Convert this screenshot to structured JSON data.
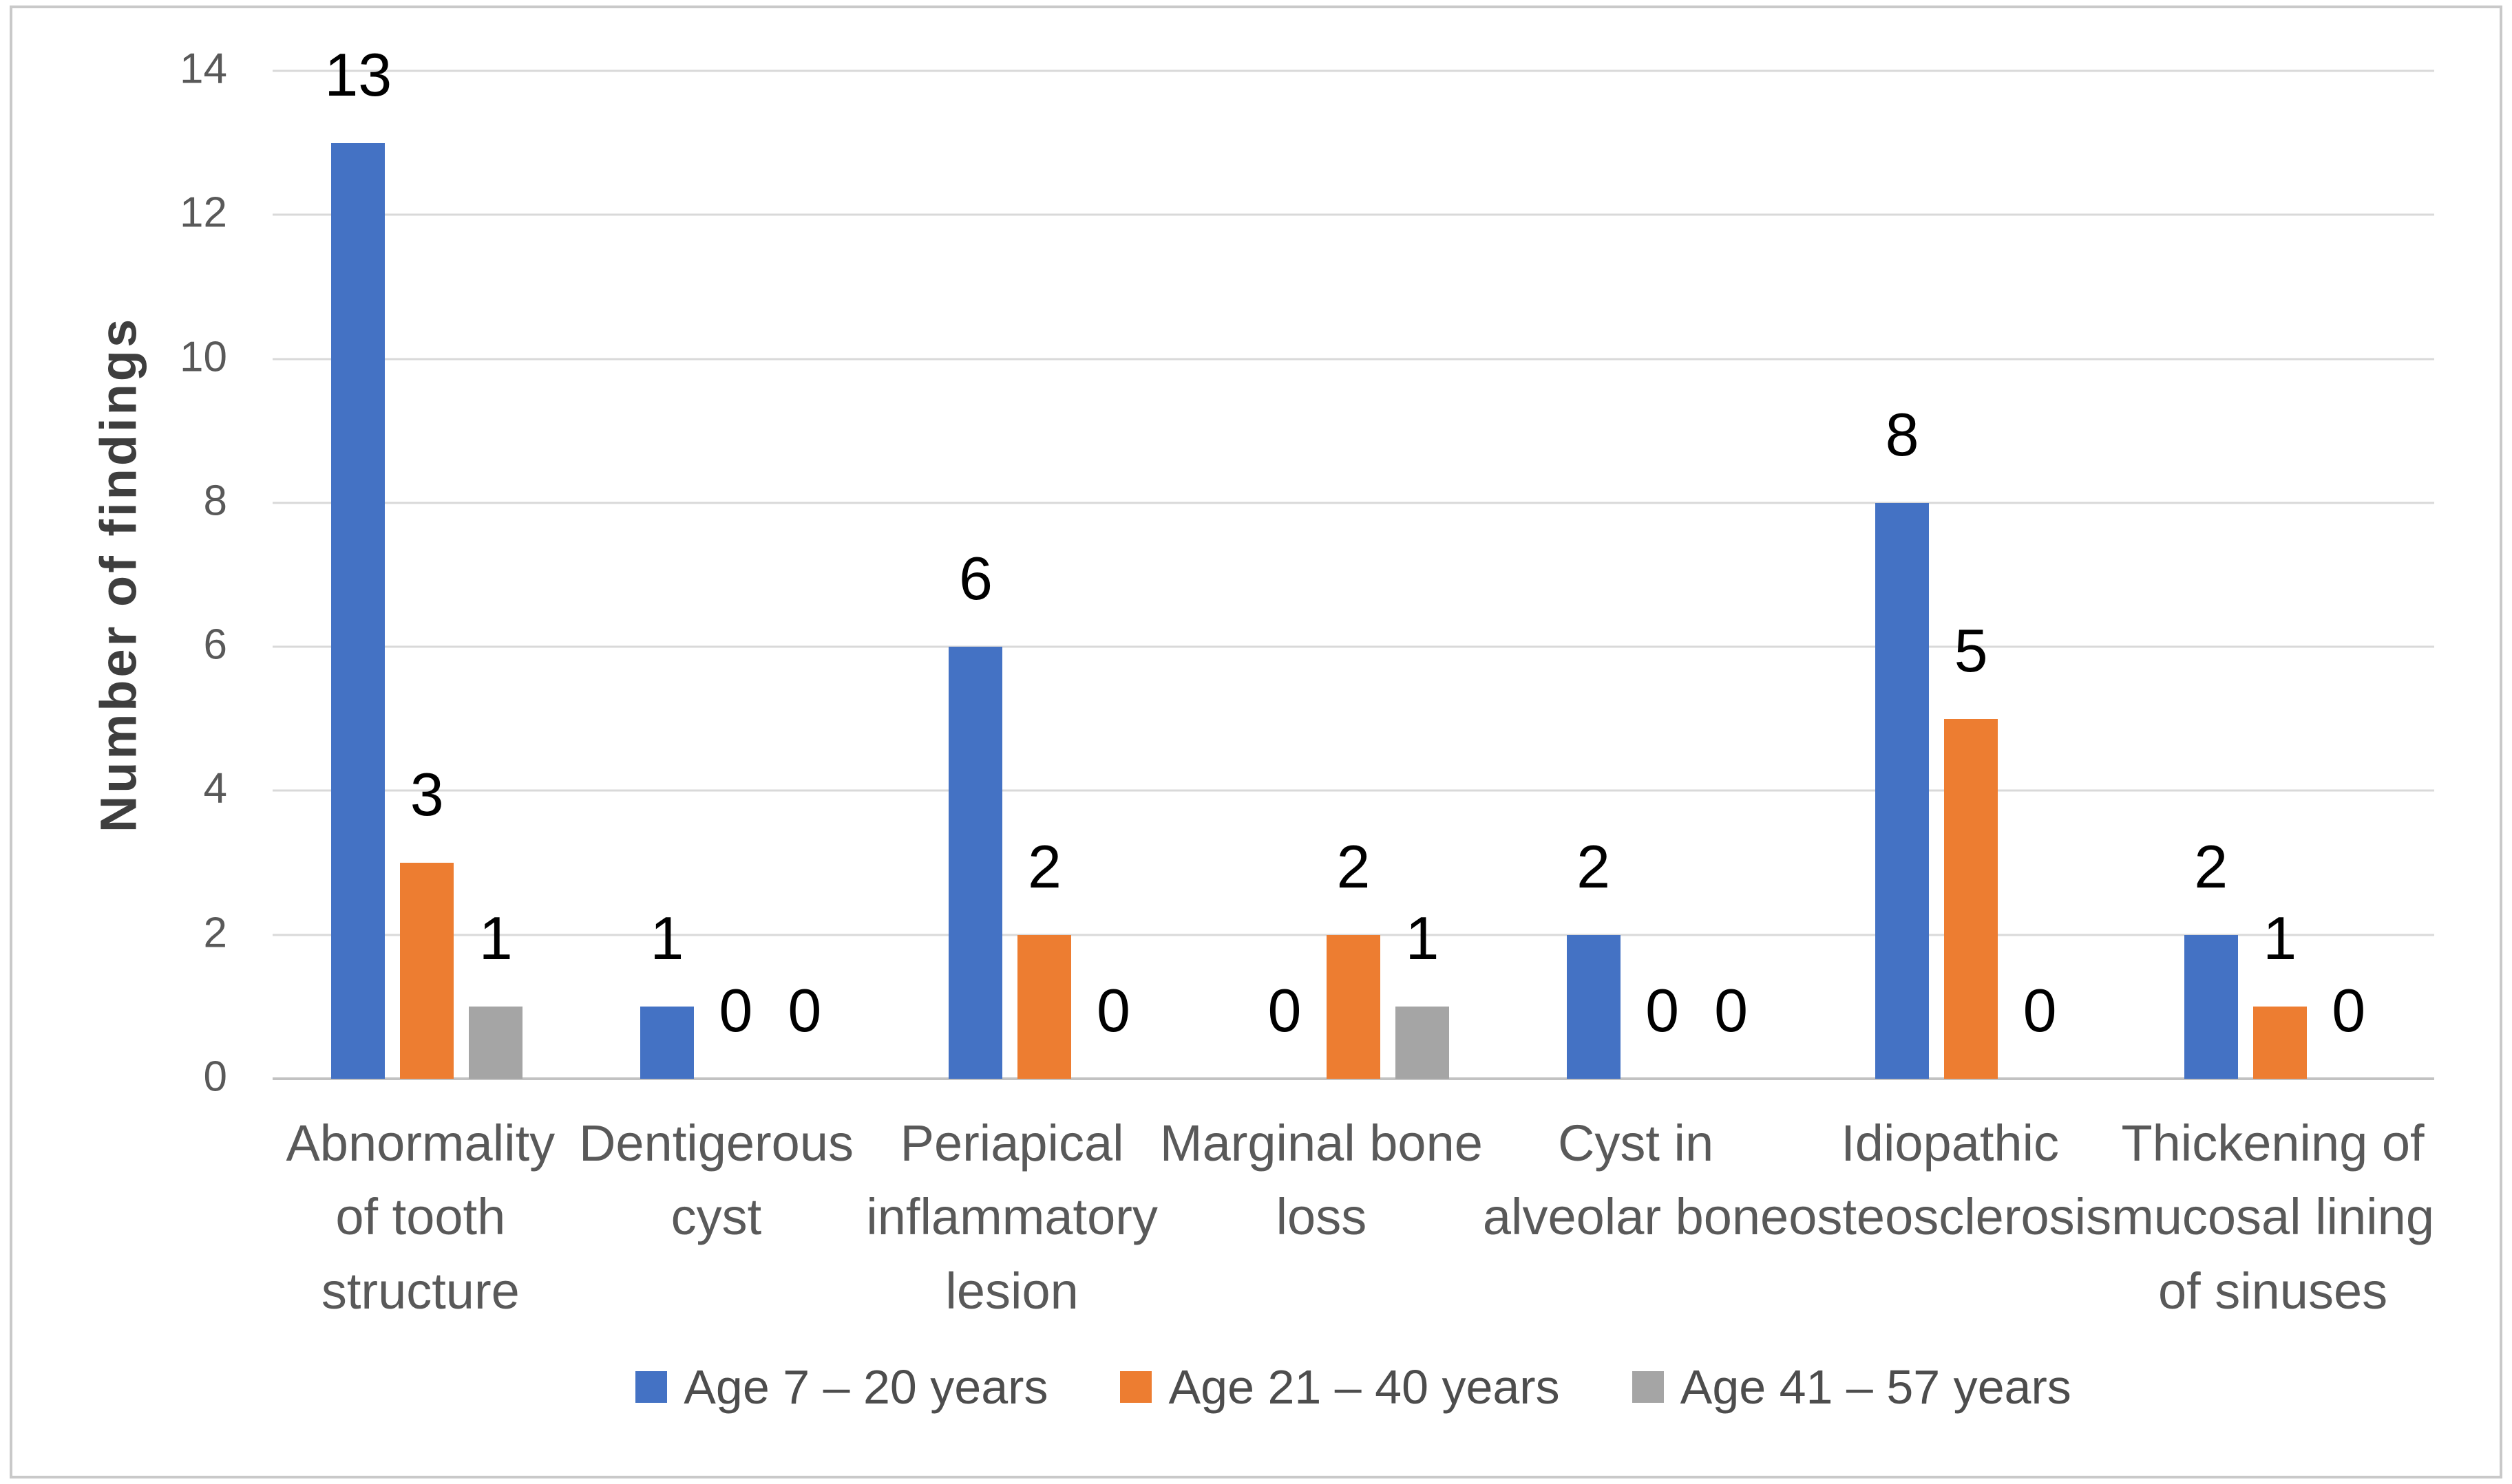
{
  "chart_data": {
    "type": "bar",
    "title": "",
    "xlabel": "",
    "ylabel": "Number of findings",
    "ylim": [
      0,
      14
    ],
    "yticks": [
      0,
      2,
      4,
      6,
      8,
      10,
      12,
      14
    ],
    "grid": true,
    "data_labels": true,
    "legend_position": "bottom",
    "categories": [
      "Abnormality of tooth structure",
      "Dentigerous cyst",
      "Periapical inflammatory lesion",
      "Marginal bone loss",
      "Cyst in alveolar bone",
      "Idiopathic osteosclerosis",
      "Thickening of mucosal lining of sinuses"
    ],
    "category_lines": [
      [
        "Abnormality",
        "of tooth",
        "structure"
      ],
      [
        "Dentigerous",
        "cyst"
      ],
      [
        "Periapical",
        "inflammatory",
        "lesion"
      ],
      [
        "Marginal bone",
        "loss"
      ],
      [
        "Cyst in",
        "alveolar bone"
      ],
      [
        "Idiopathic",
        "osteosclerosis"
      ],
      [
        "Thickening of",
        "mucosal lining",
        "of sinuses"
      ]
    ],
    "series": [
      {
        "name": "Age 7 – 20 years",
        "color": "#4472C4",
        "values": [
          13,
          1,
          6,
          0,
          2,
          8,
          2
        ]
      },
      {
        "name": "Age 21 – 40 years",
        "color": "#ED7D31",
        "values": [
          3,
          0,
          2,
          2,
          0,
          5,
          1
        ]
      },
      {
        "name": "Age 41 – 57 years",
        "color": "#A5A5A5",
        "values": [
          1,
          0,
          0,
          1,
          0,
          0,
          0
        ]
      }
    ]
  },
  "colors": {
    "background": "#ffffff",
    "border": "#c9c9c9",
    "gridline": "#d9d9d9",
    "axis_line": "#c2c2c2",
    "tick_text": "#595959",
    "category_text": "#595959",
    "data_label_text": "#000000",
    "legend_text": "#4d4d4d",
    "y_title_text": "#3e3e3e"
  }
}
